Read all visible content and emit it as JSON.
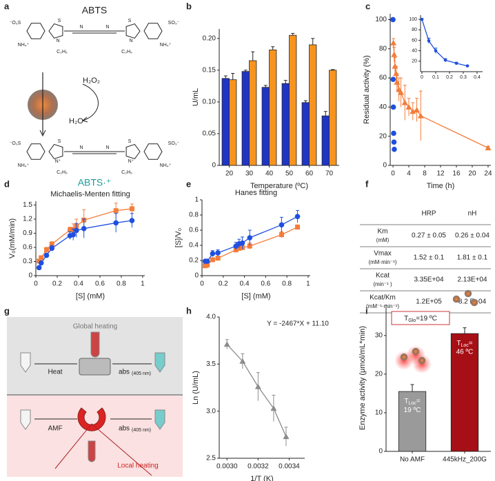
{
  "panel_labels": [
    "a",
    "b",
    "c",
    "d",
    "e",
    "f",
    "g",
    "h",
    "i"
  ],
  "diagram_a": {
    "labels": [
      "ABTS",
      "H₂O₂",
      "H₂O",
      "ABTS·⁺",
      "⁻O₃S",
      "SO₃⁻",
      "NH₄⁺",
      "C₂H₅",
      "S",
      "N",
      "N⁺"
    ]
  },
  "diagram_g": {
    "labels": [
      "Global heating",
      "Heat",
      "abs",
      "(405 nm)",
      "AMF",
      "Local heating"
    ]
  },
  "table": {
    "columns": [
      "HRP",
      "nH"
    ],
    "rows": [
      {
        "label": [
          "Km",
          "(mM)"
        ],
        "values": [
          "0.27 ± 0.05",
          "0.26 ± 0.04"
        ]
      },
      {
        "label": [
          "Vmax",
          "(mM·min⁻¹)"
        ],
        "values": [
          "1.52 ± 0.1",
          "1.81 ± 0.1"
        ]
      },
      {
        "label": [
          "Kcat",
          "(min⁻¹ )"
        ],
        "values": [
          "3.35E+04",
          "2.13E+04"
        ]
      },
      {
        "label": [
          "Kcat/Km",
          "(mM⁻¹·min⁻¹)"
        ],
        "values": [
          "1.2E+05",
          "8.2 E+04"
        ]
      }
    ]
  },
  "chart_data": [
    {
      "type": "bar",
      "ylabel": "U/mL",
      "xlabel": "Temperature (ºC)",
      "categories": [
        "20",
        "30",
        "40",
        "50",
        "60",
        "70"
      ],
      "series": [
        {
          "color": "#1f35c4",
          "values": [
            0.137,
            0.148,
            0.123,
            0.129,
            0.099,
            0.078
          ],
          "errors": [
            0.004,
            0.002,
            0.003,
            0.005,
            0.003,
            0.007
          ]
        },
        {
          "color": "#f7941d",
          "values": [
            0.135,
            0.165,
            0.182,
            0.205,
            0.19,
            0.15
          ],
          "errors": [
            0.01,
            0.014,
            0.005,
            0.003,
            0.01,
            0.001
          ]
        }
      ],
      "ylim": [
        0,
        0.215
      ],
      "yticks": [
        0,
        0.05,
        {
          "value": 0.1,
          "label": "0.10"
        },
        0.15,
        {
          "value": 0.2,
          "label": "0.20"
        }
      ]
    },
    {
      "type": "scatter",
      "ylabel": "Residual activity (%)",
      "xlabel": "Time (h)",
      "xlim": [
        -0.7,
        24.7
      ],
      "ylim": [
        0,
        104
      ],
      "xticks": [
        0,
        4,
        8,
        12,
        16,
        20,
        24
      ],
      "yticks": [
        0,
        20,
        40,
        60,
        80,
        100
      ],
      "series": [
        {
          "color": "#1f4fe0",
          "marker": "circle",
          "x": [
            0,
            0.05,
            0.1,
            0.17,
            0.25,
            0.33
          ],
          "values": [
            100,
            59,
            40,
            22,
            16,
            11
          ]
        },
        {
          "color": "#f47d3a",
          "marker": "triangle",
          "line": true,
          "x": [
            0.1,
            0.3,
            0.5,
            0.8,
            1,
            1.5,
            2,
            3,
            4,
            5,
            6,
            7,
            24
          ],
          "values": [
            84,
            76,
            68,
            63,
            57,
            52,
            50,
            43,
            40,
            37,
            38,
            34,
            12
          ],
          "errors": [
            3,
            5,
            6,
            5,
            6,
            8,
            10,
            12,
            6,
            6,
            8,
            17,
            1
          ]
        }
      ]
    },
    {
      "type": "scatter",
      "small": true,
      "xlim": [
        -0.01,
        0.44
      ],
      "ylim": [
        0,
        108
      ],
      "xticks": [
        0,
        0.1,
        0.2,
        0.3,
        0.4
      ],
      "yticks": [
        20,
        40,
        60,
        80,
        100
      ],
      "series": [
        {
          "color": "#1f4fe0",
          "marker": "circle",
          "line": true,
          "x": [
            0,
            0.05,
            0.1,
            0.17,
            0.25,
            0.33
          ],
          "values": [
            100,
            59,
            40,
            22,
            16,
            11
          ],
          "errors": [
            1,
            5,
            5,
            3,
            2,
            1
          ]
        }
      ]
    },
    {
      "type": "scatter",
      "title": "Michaelis-Menten fitting",
      "ylabel": "V₀(mM/min)",
      "xlabel": "[S] (mM)",
      "xlim": [
        0,
        1.02
      ],
      "ylim": [
        0,
        1.58
      ],
      "xticks": [
        0,
        0.2,
        0.4,
        0.6,
        0.8,
        1
      ],
      "yticks": [
        0,
        0.3,
        0.6,
        0.9,
        1.2,
        1.5
      ],
      "series": [
        {
          "color": "#f47d3a",
          "marker": "square",
          "line": true,
          "x": [
            0.03,
            0.05,
            0.1,
            0.15,
            0.32,
            0.35,
            0.38,
            0.45,
            0.75,
            0.9
          ],
          "values": [
            0.31,
            0.38,
            0.55,
            0.67,
            0.97,
            0.98,
            1.05,
            1.18,
            1.38,
            1.42
          ],
          "errors": [
            0.02,
            0.03,
            0.05,
            0.05,
            0.06,
            0.12,
            0.15,
            0.22,
            0.16,
            0.1
          ]
        },
        {
          "color": "#1f4fe0",
          "marker": "circle",
          "line": true,
          "x": [
            0.03,
            0.05,
            0.1,
            0.15,
            0.32,
            0.35,
            0.38,
            0.45,
            0.75,
            0.9
          ],
          "values": [
            0.17,
            0.27,
            0.43,
            0.58,
            0.85,
            0.87,
            0.96,
            1.0,
            1.12,
            1.17
          ],
          "errors": [
            0.03,
            0.04,
            0.05,
            0.06,
            0.08,
            0.12,
            0.15,
            0.2,
            0.2,
            0.15
          ]
        }
      ]
    },
    {
      "type": "scatter",
      "title": "Hanes fitting",
      "ylabel": "[S]/V₀",
      "xlabel": "[S] (mM)",
      "xlim": [
        0,
        1.02
      ],
      "ylim": [
        0,
        1
      ],
      "xticks": [
        0,
        0.2,
        0.4,
        0.6,
        0.8,
        1
      ],
      "yticks": [
        0,
        0.2,
        0.4,
        0.6,
        0.8,
        1
      ],
      "series": [
        {
          "color": "#f47d3a",
          "marker": "square",
          "line": true,
          "x": [
            0.03,
            0.05,
            0.1,
            0.15,
            0.32,
            0.35,
            0.38,
            0.45,
            0.75,
            0.9
          ],
          "values": [
            0.13,
            0.14,
            0.21,
            0.23,
            0.34,
            0.36,
            0.37,
            0.39,
            0.54,
            0.64
          ],
          "errors": [
            0.01,
            0.01,
            0.02,
            0.02,
            0.03,
            0.03,
            0.03,
            0.04,
            0.04,
            0.03
          ]
        },
        {
          "color": "#1f4fe0",
          "marker": "circle",
          "line": true,
          "x": [
            0.03,
            0.05,
            0.1,
            0.15,
            0.32,
            0.35,
            0.38,
            0.45,
            0.75,
            0.9
          ],
          "values": [
            0.19,
            0.19,
            0.29,
            0.3,
            0.39,
            0.42,
            0.43,
            0.5,
            0.67,
            0.78
          ],
          "errors": [
            0.02,
            0.02,
            0.04,
            0.04,
            0.05,
            0.06,
            0.08,
            0.1,
            0.1,
            0.08
          ]
        }
      ]
    },
    {
      "type": "scatter",
      "ylabel": "Ln (U/mL)",
      "xlabel": "1/T (K)",
      "annotation": "Y = -2467*X + 11.10",
      "xlim": [
        0.00295,
        0.0035
      ],
      "ylim": [
        2.5,
        4.0
      ],
      "xticks": [
        {
          "value": 0.003,
          "label": "0.0030"
        },
        0.0032,
        0.0034
      ],
      "yticks": [
        2.5,
        {
          "value": 3,
          "label": "3.0"
        },
        3.5,
        {
          "value": 4,
          "label": "4.0"
        }
      ],
      "series": [
        {
          "color": "#8c8c8c",
          "marker": "triangle",
          "line": true,
          "x": [
            0.003,
            0.0031,
            0.0032,
            0.0033,
            0.00338
          ],
          "values": [
            3.71,
            3.53,
            3.26,
            3.03,
            2.73
          ],
          "errors": [
            0.05,
            0.08,
            0.15,
            0.14,
            0.1
          ]
        }
      ]
    },
    {
      "type": "bar",
      "ylabel": "Enzyme activity (μmol/mL*min)",
      "categories": [
        "No AMF",
        "445kHz_200G"
      ],
      "series": [
        {
          "colors": [
            "#9a9a9a",
            "#a50f15"
          ],
          "values": [
            15.5,
            30.5
          ],
          "errors": [
            1.8,
            1.5
          ]
        }
      ],
      "ylim": [
        0,
        38
      ],
      "yticks": [
        0,
        10,
        20,
        30
      ],
      "box_label": [
        "T",
        "Glo",
        "=19 ºC"
      ],
      "bar_labels": [
        [
          "T",
          "Loc",
          "=",
          "19 ºC"
        ],
        [
          "T",
          "Loc",
          "=",
          "46 ºC"
        ]
      ]
    }
  ]
}
